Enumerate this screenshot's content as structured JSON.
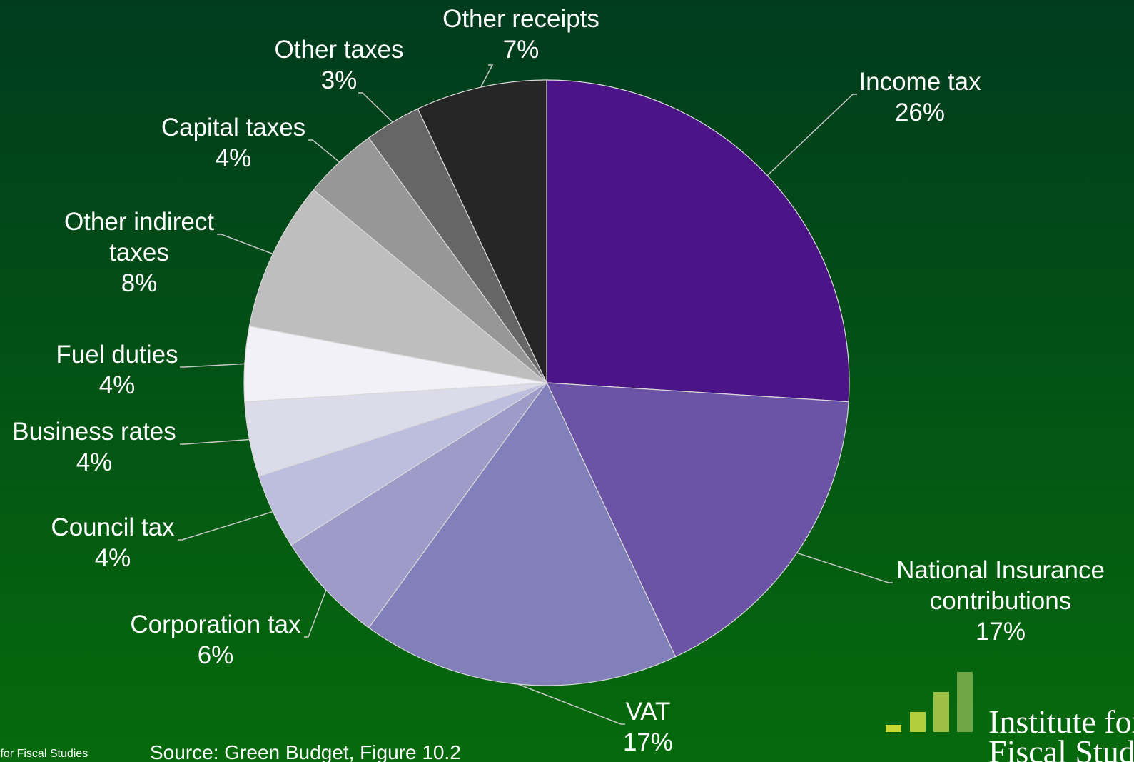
{
  "chart_data": {
    "type": "pie",
    "categories": [
      "Income tax",
      "National Insurance contributions",
      "VAT",
      "Corporation tax",
      "Council tax",
      "Business rates",
      "Fuel duties",
      "Other indirect taxes",
      "Capital taxes",
      "Other taxes",
      "Other receipts"
    ],
    "values": [
      26,
      17,
      17,
      6,
      4,
      4,
      4,
      8,
      4,
      3,
      7
    ],
    "value_labels": [
      "26%",
      "17%",
      "17%",
      "6%",
      "4%",
      "4%",
      "4%",
      "8%",
      "4%",
      "3%",
      "7%"
    ],
    "colors": [
      "#4b1587",
      "#6b54a5",
      "#8280ba",
      "#9e9bc9",
      "#bdbddd",
      "#dcdbea",
      "#f2f1f8",
      "#bebebe",
      "#979797",
      "#666666",
      "#262626"
    ],
    "source": "Source: Green Budget, Figure 10.2",
    "footer_left": "Institute for Fiscal Studies",
    "logo_text": [
      "Institute for",
      "Fiscal Studies"
    ]
  }
}
